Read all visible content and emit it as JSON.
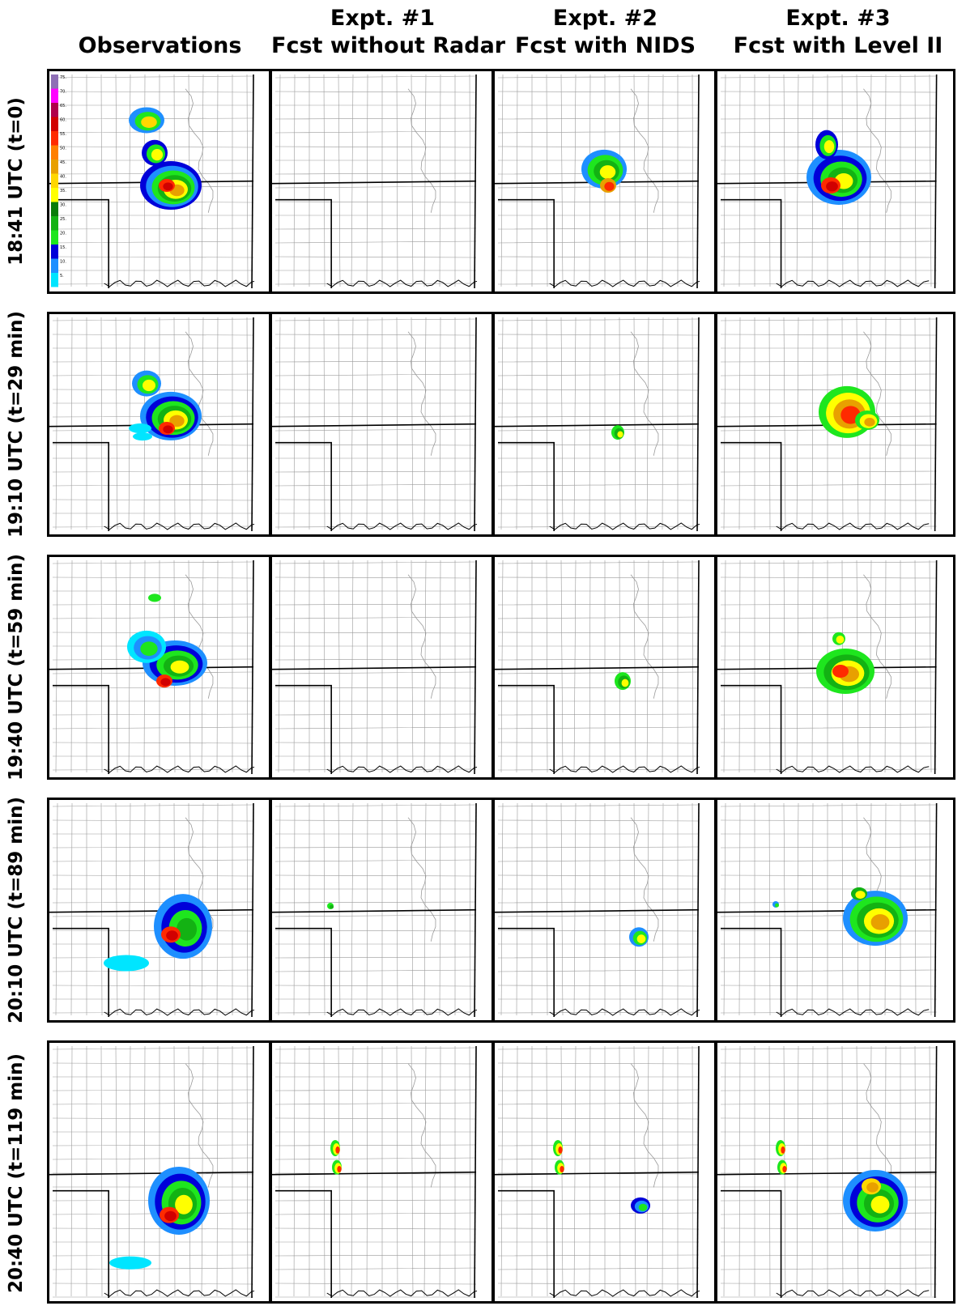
{
  "columns": [
    {
      "line1": "",
      "line2": "Observations"
    },
    {
      "line1": "Expt. #1",
      "line2": "Fcst without Radar"
    },
    {
      "line1": "Expt. #2",
      "line2": "Fcst with NIDS"
    },
    {
      "line1": "Expt. #3",
      "line2": "Fcst with Level II"
    }
  ],
  "rows": [
    {
      "label": "18:41 UTC (t=0)"
    },
    {
      "label": "19:10 UTC (t=29 min)"
    },
    {
      "label": "19:40 UTC (t=59 min)"
    },
    {
      "label": "20:10 UTC (t=89 min)"
    },
    {
      "label": "20:40 UTC (t=119 min)"
    }
  ],
  "legend": {
    "ticks": [
      "75",
      "70",
      "65",
      "60",
      "55",
      "50",
      "45",
      "40",
      "35",
      "30",
      "25",
      "20",
      "15",
      "10",
      "5"
    ],
    "colors": [
      "#8e6fb5",
      "#ff00ff",
      "#b0004a",
      "#d10000",
      "#ff2a00",
      "#ff7f00",
      "#e8a000",
      "#ffd700",
      "#ffff00",
      "#087c08",
      "#13b213",
      "#1ee61e",
      "#0000d9",
      "#1e8fff",
      "#00e5ff"
    ]
  },
  "colors": {
    "county_lines": "#9a9a9a",
    "state_lines": "#000000"
  }
}
